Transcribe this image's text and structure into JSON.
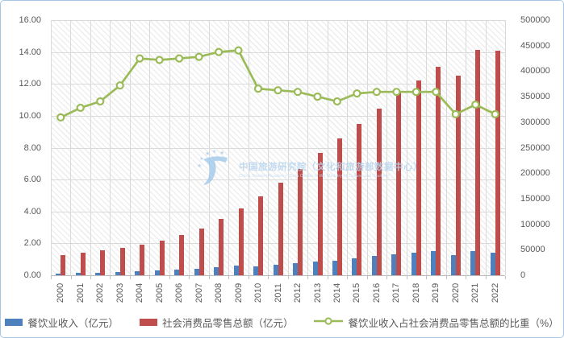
{
  "frame": {
    "border_color": "#a5c7e6",
    "background": "#ffffff"
  },
  "watermark": {
    "line1": "中国旅游研究院（文化和旅游部数据中心）",
    "line2": "China Tourism Academy (Data Center of the Ministry of Culture and Tourism)",
    "color": "#b7d4ee"
  },
  "chart_data": {
    "type": "bar+line",
    "title": "",
    "categories": [
      "2000",
      "2001",
      "2002",
      "2003",
      "2004",
      "2005",
      "2006",
      "2007",
      "2008",
      "2009",
      "2010",
      "2011",
      "2012",
      "2013",
      "2014",
      "2015",
      "2016",
      "2017",
      "2018",
      "2019",
      "2020",
      "2021",
      "2022"
    ],
    "series": [
      {
        "name": "餐饮业收入（亿元）",
        "type": "bar",
        "axis": "right",
        "color": "#4e80bd",
        "values": [
          4000,
          4600,
          5300,
          6400,
          8200,
          9200,
          10700,
          12500,
          15400,
          18500,
          18100,
          21100,
          23900,
          26900,
          29200,
          33700,
          37500,
          41200,
          43800,
          47000,
          39600,
          47200,
          44400
        ]
      },
      {
        "name": "社会消费品零售总额（亿元）",
        "type": "bar",
        "axis": "right",
        "color": "#bf4d4b",
        "values": [
          40000,
          44000,
          48500,
          53500,
          60000,
          68000,
          78500,
          91000,
          110000,
          131000,
          155000,
          182000,
          208000,
          240000,
          268000,
          296000,
          326000,
          358000,
          381000,
          409000,
          392000,
          441000,
          440000
        ]
      },
      {
        "name": "餐饮业收入占社会消费品零售总额的比重（%）",
        "type": "line",
        "axis": "left",
        "color": "#9bbb59",
        "marker": "circle",
        "values": [
          9.9,
          10.5,
          10.9,
          11.9,
          13.6,
          13.5,
          13.6,
          13.7,
          14.0,
          14.1,
          11.7,
          11.6,
          11.5,
          11.2,
          10.9,
          11.4,
          11.5,
          11.5,
          11.5,
          11.5,
          10.1,
          10.7,
          10.1
        ]
      }
    ],
    "left_axis": {
      "min": 0,
      "max": 16,
      "step": 2,
      "tick_format": "0.00"
    },
    "right_axis": {
      "min": 0,
      "max": 500000,
      "step": 50000
    },
    "grid": true,
    "grid_color": "#dadada",
    "axis_text_color": "#595959",
    "legend_position": "bottom",
    "plot_background": "diagonal-hatch"
  }
}
